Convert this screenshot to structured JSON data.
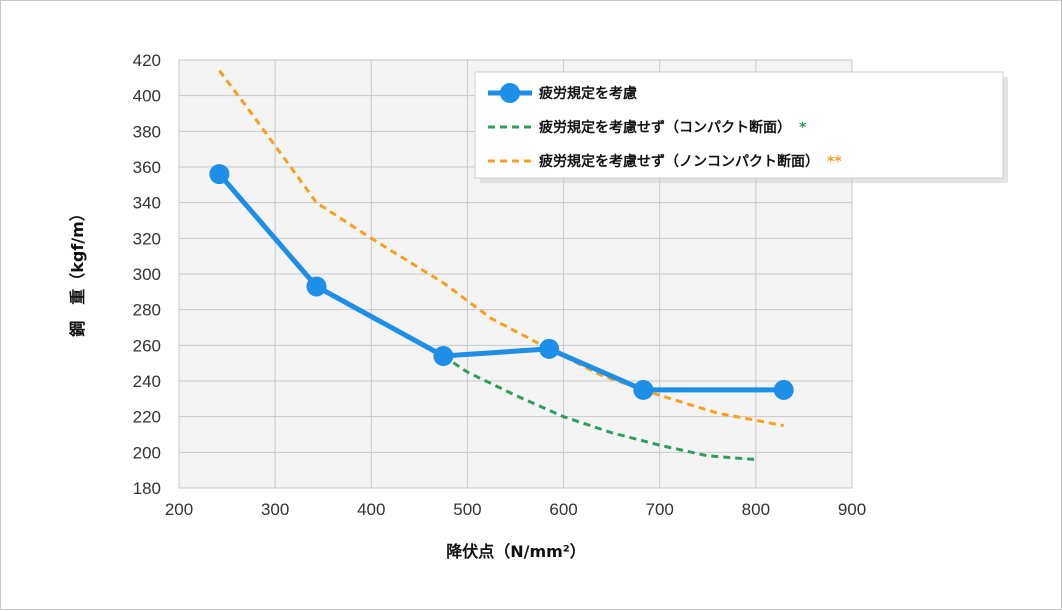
{
  "chart_data": {
    "type": "line",
    "xlabel": "降伏点（N/mm²）",
    "ylabel": "鋼　重（kgf/m）",
    "xlim": [
      200,
      900
    ],
    "ylim": [
      180,
      420
    ],
    "x_ticks": [
      200,
      300,
      400,
      500,
      600,
      700,
      800,
      900
    ],
    "y_ticks": [
      180,
      200,
      220,
      240,
      260,
      280,
      300,
      320,
      340,
      360,
      380,
      400,
      420
    ],
    "grid": true,
    "legend_position": "top-right",
    "series": [
      {
        "name": "疲労規定を考慮",
        "style": "solid-markers",
        "color": "#1e8fe6",
        "x": [
          242,
          343,
          475,
          585,
          683,
          829
        ],
        "y": [
          356,
          293,
          254,
          258,
          235,
          235
        ]
      },
      {
        "name": "疲労規定を考慮せず（コンパクト断面）",
        "marker_label": "*",
        "style": "dashed",
        "color": "#2e9e5a",
        "x": [
          475,
          500,
          550,
          600,
          650,
          700,
          750,
          800
        ],
        "y": [
          254,
          245,
          232,
          220,
          211,
          204,
          198,
          196
        ]
      },
      {
        "name": "疲労規定を考慮せず（ノンコンパクト断面）",
        "marker_label": "**",
        "style": "dashed",
        "color": "#f7a01e",
        "x": [
          242,
          270,
          300,
          343,
          400,
          475,
          525,
          585,
          640,
          700,
          760,
          829
        ],
        "y": [
          414,
          394,
          372,
          340,
          320,
          295,
          275,
          258,
          243,
          232,
          222,
          215
        ]
      }
    ]
  }
}
